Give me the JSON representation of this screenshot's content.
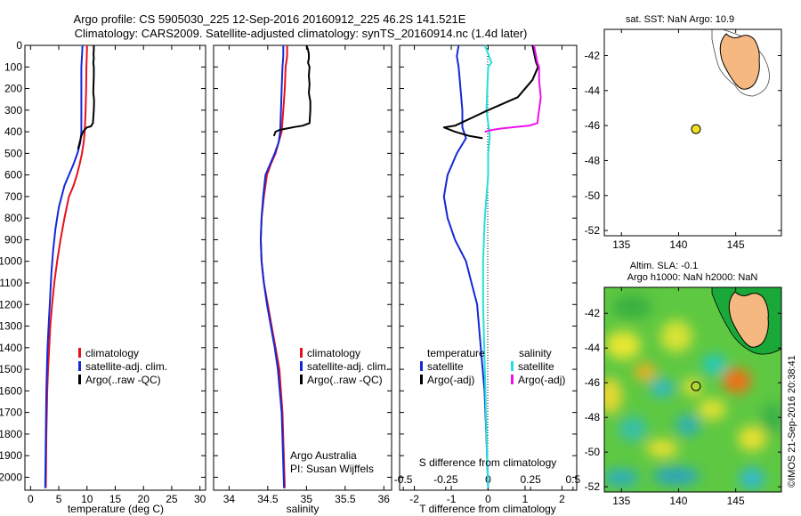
{
  "header": {
    "title_line1": "Argo profile: CS 5905030_225 12-Sep-2016 20160912_225 46.2S 141.521E",
    "title_line2": "Climatology: CARS2009. Satellite-adjusted climatology: synTS_20160914.nc (1.4d later)"
  },
  "colors": {
    "clim": "#e8101a",
    "sat": "#1428d8",
    "argo": "#000000",
    "sat_s": "#22e0e0",
    "argo_s": "#ee10ee",
    "land": "#f5b880",
    "marker": "#f0e020"
  },
  "chart_data": [
    {
      "type": "line",
      "panel": "temperature",
      "xlabel": "temperature (deg C)",
      "xlim": [
        -1,
        31
      ],
      "xticks": [
        0,
        5,
        10,
        15,
        20,
        25,
        30
      ],
      "ylim": [
        0,
        2060
      ],
      "yticks": [
        0,
        100,
        200,
        300,
        400,
        500,
        600,
        700,
        800,
        900,
        1000,
        1100,
        1200,
        1300,
        1400,
        1500,
        1600,
        1700,
        1800,
        1900,
        2000
      ],
      "legend": [
        "climatology",
        "satellite-adj. clim.",
        "Argo(..raw -QC)"
      ],
      "series": [
        {
          "name": "climatology",
          "x": [
            10.0,
            9.95,
            9.9,
            9.85,
            9.75,
            9.6,
            9.4,
            9.1,
            8.7,
            8.2,
            7.6,
            6.8,
            6.0,
            5.3,
            4.7,
            4.2,
            3.8,
            3.5,
            3.3,
            3.1,
            2.95,
            2.8,
            2.7
          ],
          "y": [
            0,
            50,
            100,
            200,
            300,
            400,
            450,
            500,
            550,
            600,
            650,
            700,
            800,
            900,
            1000,
            1100,
            1200,
            1300,
            1400,
            1500,
            1600,
            1800,
            2050
          ]
        },
        {
          "name": "satellite-adj. clim.",
          "x": [
            9.2,
            9.1,
            9.0,
            9.0,
            9.0,
            9.0,
            8.8,
            8.3,
            7.6,
            6.8,
            6.0,
            5.0,
            4.4,
            4.0,
            3.7,
            3.4,
            3.2,
            3.0,
            2.9,
            2.8,
            2.7,
            2.6
          ],
          "y": [
            0,
            50,
            100,
            200,
            300,
            400,
            450,
            500,
            550,
            600,
            650,
            750,
            850,
            950,
            1050,
            1200,
            1300,
            1400,
            1500,
            1600,
            1800,
            2050
          ]
        },
        {
          "name": "Argo(..raw -QC)",
          "x": [
            11.2,
            11.2,
            11.15,
            11.2,
            11.1,
            11.2,
            11.2,
            11.15,
            11.1,
            11.2,
            11.25,
            11.2,
            11.05,
            10.7,
            10.0,
            9.6,
            9.3,
            9.0,
            8.7,
            8.5,
            8.4
          ],
          "y": [
            0,
            20,
            40,
            60,
            80,
            100,
            140,
            180,
            220,
            240,
            260,
            300,
            360,
            375,
            380,
            390,
            400,
            420,
            450,
            470,
            480
          ]
        }
      ]
    },
    {
      "type": "line",
      "panel": "salinity",
      "xlabel": "salinity",
      "xlim": [
        33.8,
        36.1
      ],
      "xticks": [
        34,
        34.5,
        35,
        35.5,
        36
      ],
      "ylim": [
        0,
        2060
      ],
      "legend": [
        "climatology",
        "satellite-adj. clim.",
        "Argo(..raw -QC)"
      ],
      "annotation": [
        "Argo Australia",
        "PI: Susan Wijffels"
      ],
      "series": [
        {
          "name": "climatology",
          "x": [
            34.75,
            34.75,
            34.73,
            34.72,
            34.7,
            34.68,
            34.64,
            34.6,
            34.54,
            34.49,
            34.45,
            34.42,
            34.41,
            34.42,
            34.45,
            34.5,
            34.55,
            34.6,
            34.65,
            34.69,
            34.72
          ],
          "y": [
            0,
            50,
            100,
            200,
            300,
            400,
            450,
            500,
            550,
            600,
            700,
            800,
            900,
            1000,
            1100,
            1200,
            1300,
            1400,
            1500,
            1700,
            2050
          ]
        },
        {
          "name": "satellite-adj. clim.",
          "x": [
            34.7,
            34.7,
            34.69,
            34.68,
            34.67,
            34.66,
            34.64,
            34.59,
            34.53,
            34.47,
            34.44,
            34.42,
            34.41,
            34.42,
            34.45,
            34.49,
            34.54,
            34.59,
            34.63,
            34.68,
            34.71
          ],
          "y": [
            0,
            50,
            100,
            200,
            300,
            400,
            450,
            500,
            550,
            600,
            700,
            800,
            900,
            1000,
            1100,
            1200,
            1300,
            1400,
            1500,
            1700,
            2050
          ]
        },
        {
          "name": "Argo(..raw -QC)",
          "x": [
            35.0,
            35.02,
            35.03,
            35.03,
            35.02,
            35.04,
            35.03,
            35.04,
            35.03,
            35.05,
            35.05,
            35.04,
            34.95,
            34.85,
            34.75,
            34.65,
            34.6,
            34.58
          ],
          "y": [
            0,
            20,
            40,
            60,
            80,
            100,
            140,
            180,
            220,
            260,
            300,
            360,
            372,
            378,
            385,
            392,
            400,
            420
          ]
        }
      ]
    },
    {
      "type": "line",
      "panel": "difference",
      "xlabel": "T difference from climatology",
      "xlim": [
        -2.4,
        2.4
      ],
      "xticks": [
        -2,
        -1,
        0,
        1,
        2
      ],
      "top_label": "S difference from climatology",
      "s_ticks": [
        -0.5,
        -0.25,
        0,
        0.25,
        0.5
      ],
      "s_tick_labels": [
        "-0.5",
        "-0.25",
        "0",
        "0.25",
        "0.5"
      ],
      "ylim": [
        0,
        2060
      ],
      "legend_titles": [
        "temperature",
        "salinity"
      ],
      "legend": [
        "satellite",
        "Argo(-adj)",
        "satellite",
        "Argo(-adj)"
      ],
      "series": [
        {
          "name": "temperature satellite",
          "x": [
            -0.8,
            -0.85,
            -0.8,
            -0.75,
            -0.7,
            -0.7,
            -0.6,
            -0.85,
            -1.1,
            -1.2,
            -1.1,
            -0.9,
            -0.6,
            -0.45,
            -0.3,
            -0.2,
            -0.1,
            -0.05,
            0.0
          ],
          "y": [
            0,
            50,
            100,
            200,
            300,
            380,
            430,
            500,
            600,
            700,
            800,
            900,
            1000,
            1100,
            1200,
            1400,
            1600,
            1800,
            2050
          ]
        },
        {
          "name": "temperature Argo(-adj)",
          "x": [
            1.2,
            1.25,
            1.3,
            1.35,
            1.2,
            0.8,
            0.0,
            -0.9,
            -1.2,
            -0.9,
            -0.5,
            -0.15
          ],
          "y": [
            0,
            40,
            80,
            100,
            160,
            240,
            300,
            372,
            380,
            400,
            420,
            430
          ]
        },
        {
          "name": "salinity satellite",
          "x": [
            -0.02,
            0.02,
            0.0,
            -0.01,
            0.01,
            0.0,
            0.0,
            -0.02,
            -0.03,
            -0.03,
            -0.02,
            -0.01,
            0.0
          ],
          "y": [
            0,
            80,
            100,
            300,
            420,
            500,
            600,
            800,
            1000,
            1200,
            1500,
            1800,
            2050
          ]
        },
        {
          "name": "salinity Argo(-adj)",
          "x": [
            0.27,
            0.28,
            0.29,
            0.3,
            0.3,
            0.31,
            0.3,
            0.29,
            0.24,
            0.16,
            0.08,
            0.02,
            -0.02
          ],
          "y": [
            0,
            40,
            80,
            100,
            160,
            240,
            300,
            360,
            372,
            378,
            385,
            392,
            400
          ]
        }
      ]
    },
    {
      "type": "scatter",
      "panel": "sst_map",
      "title": "sat. SST: NaN Argo: 10.9",
      "xlim": [
        133.5,
        149
      ],
      "ylim": [
        -52.3,
        -40.5
      ],
      "xticks": [
        135,
        140,
        145
      ],
      "yticks": [
        -42,
        -44,
        -46,
        -48,
        -50,
        -52
      ],
      "points": [
        {
          "x": 141.52,
          "y": -46.2
        }
      ]
    },
    {
      "type": "heatmap",
      "panel": "sla_map",
      "title_line1": "Altim. SLA: -0.1",
      "title_line2": "Argo h1000: NaN h2000: NaN",
      "xlim": [
        133.5,
        149
      ],
      "ylim": [
        -52.3,
        -40.5
      ],
      "xticks": [
        135,
        140,
        145
      ],
      "yticks": [
        -42,
        -44,
        -46,
        -48,
        -50,
        -52
      ],
      "points": [
        {
          "x": 141.52,
          "y": -46.2
        }
      ]
    }
  ],
  "watermark": "©IMOS 21-Sep-2016 20:38:41"
}
